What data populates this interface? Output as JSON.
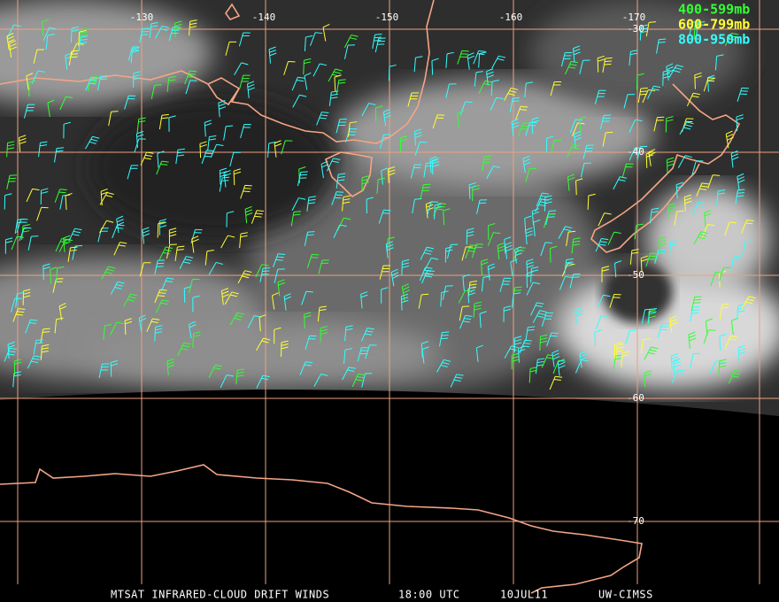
{
  "map": {
    "longitude_labels": [
      "-130",
      "-140",
      "-150",
      "-160",
      "-170"
    ],
    "latitude_labels": [
      "-30",
      "-40",
      "-50",
      "-60",
      "-70"
    ]
  },
  "legend": [
    "400-599mb",
    "600-799mb",
    "800-950mb"
  ],
  "footer": [
    "MTSAT INFRARED-CLOUD DRIFT WINDS",
    "18:00 UTC",
    "10JUL11",
    "UW-CIMSS"
  ]
}
